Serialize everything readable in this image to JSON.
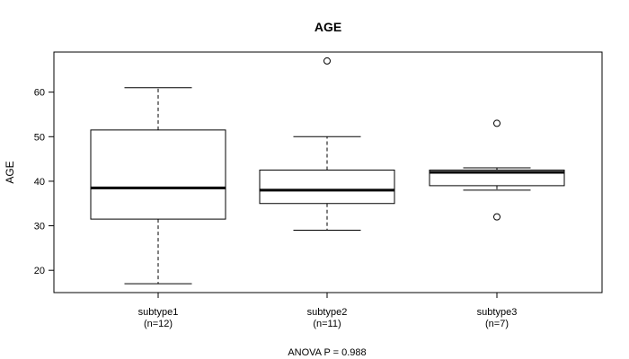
{
  "chart_data": {
    "type": "boxplot",
    "title": "AGE",
    "ylabel": "AGE",
    "footnote": "ANOVA P = 0.988",
    "ylim": [
      15,
      69
    ],
    "yticks": [
      20,
      30,
      40,
      50,
      60
    ],
    "grid": false,
    "groups": [
      {
        "name": "subtype1",
        "n_label": "(n=12)",
        "whisker_low": 17,
        "q1": 31.5,
        "median": 38.5,
        "q3": 51.5,
        "whisker_high": 61,
        "outliers": []
      },
      {
        "name": "subtype2",
        "n_label": "(n=11)",
        "whisker_low": 29,
        "q1": 35,
        "median": 38,
        "q3": 42.5,
        "whisker_high": 50,
        "outliers": [
          67
        ]
      },
      {
        "name": "subtype3",
        "n_label": "(n=7)",
        "whisker_low": 38,
        "q1": 39,
        "median": 42,
        "q3": 42.5,
        "whisker_high": 43,
        "outliers": [
          32,
          53
        ]
      }
    ]
  }
}
